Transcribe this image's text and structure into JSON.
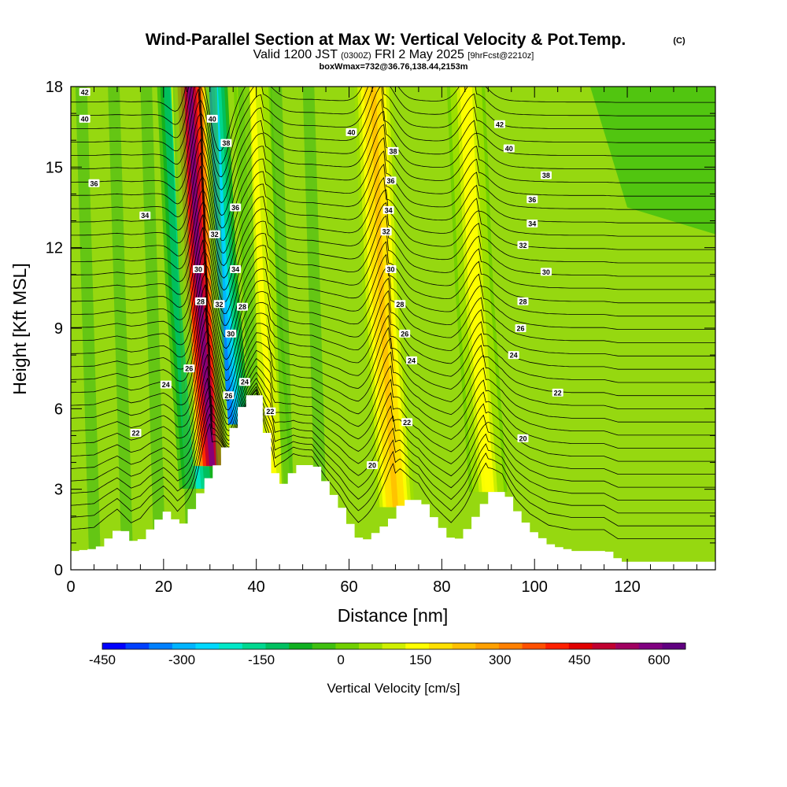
{
  "title": {
    "main": "Wind-Parallel Section at Max W: Vertical Velocity & Pot.Temp.",
    "copyright": "(C)",
    "valid_prefix": "Valid 1200 JST",
    "valid_utc": "(0300Z)",
    "valid_date": "FRI 2 May 2025",
    "forecast": "[9hrFcst@2210z]",
    "box_info": "boxWmax=732@36.76,138.44,2153m"
  },
  "chart_data": {
    "type": "heatmap",
    "xlabel": "Distance [nm]",
    "ylabel": "Height [Kft MSL]",
    "x_ticks": [
      "0",
      "20",
      "40",
      "60",
      "80",
      "100",
      "120"
    ],
    "x_tick_values": [
      0,
      20,
      40,
      60,
      80,
      100,
      120
    ],
    "y_ticks": [
      "0",
      "3",
      "6",
      "9",
      "12",
      "15",
      "18"
    ],
    "y_tick_values": [
      0,
      3,
      6,
      9,
      12,
      15,
      18
    ],
    "xlim": [
      0,
      139
    ],
    "ylim": [
      0,
      18
    ],
    "colorbar": {
      "label": "Vertical Velocity [cm/s]",
      "tick_labels": [
        "-450",
        "-300",
        "-150",
        "0",
        "150",
        "300",
        "450",
        "600"
      ],
      "tick_values": [
        -450,
        -300,
        -150,
        0,
        150,
        300,
        450,
        600
      ],
      "range": [
        -450,
        650
      ],
      "colors": [
        "#0000ff",
        "#0040ff",
        "#0080ff",
        "#00b4ff",
        "#00d8ff",
        "#00e8c8",
        "#00d890",
        "#00c060",
        "#10b020",
        "#40c010",
        "#70d000",
        "#a0e000",
        "#d0f000",
        "#ffff00",
        "#ffe000",
        "#ffc000",
        "#ffa000",
        "#ff8000",
        "#ff5000",
        "#ff2000",
        "#e00000",
        "#c00030",
        "#a00060",
        "#800080",
        "#600080"
      ]
    },
    "updrafts": [
      {
        "name": "updraft",
        "x": 30.5,
        "peak_cm_s": 600
      },
      {
        "name": "updraft",
        "x": 70,
        "peak_cm_s": 250
      },
      {
        "name": "updraft",
        "x": 90,
        "peak_cm_s": 150
      },
      {
        "name": "updraft",
        "x": 44,
        "peak_cm_s": 130
      }
    ],
    "downdrafts": [
      {
        "name": "downdraft",
        "x": 34.5,
        "peak_cm_s": -350
      },
      {
        "name": "downdraft",
        "x": 27.5,
        "peak_cm_s": -200
      }
    ],
    "terrain_profile": [
      [
        0,
        0.7
      ],
      [
        5,
        0.8
      ],
      [
        8,
        1.3
      ],
      [
        10,
        1.6
      ],
      [
        13,
        1.0
      ],
      [
        15,
        1.2
      ],
      [
        17,
        1.7
      ],
      [
        20,
        2.2
      ],
      [
        23,
        1.6
      ],
      [
        26,
        2.5
      ],
      [
        28,
        3.2
      ],
      [
        31,
        4.0
      ],
      [
        34,
        5.2
      ],
      [
        37,
        6.5
      ],
      [
        40,
        6.5
      ],
      [
        42,
        4.5
      ],
      [
        44,
        3.0
      ],
      [
        46,
        3.4
      ],
      [
        48,
        3.9
      ],
      [
        52,
        3.9
      ],
      [
        55,
        3.0
      ],
      [
        58,
        2.2
      ],
      [
        60,
        1.5
      ],
      [
        62,
        1.0
      ],
      [
        65,
        1.4
      ],
      [
        68,
        1.8
      ],
      [
        71,
        2.6
      ],
      [
        75,
        2.6
      ],
      [
        78,
        1.8
      ],
      [
        82,
        1.0
      ],
      [
        85,
        1.6
      ],
      [
        88,
        2.4
      ],
      [
        90,
        2.9
      ],
      [
        93,
        2.9
      ],
      [
        96,
        2.0
      ],
      [
        99,
        1.4
      ],
      [
        103,
        0.9
      ],
      [
        108,
        0.7
      ],
      [
        115,
        0.7
      ],
      [
        118,
        0.3
      ],
      [
        139,
        0.3
      ]
    ],
    "contour_levels": [
      20,
      22,
      24,
      26,
      28,
      30,
      32,
      34,
      36,
      38,
      40,
      42
    ],
    "contour_labels": [
      {
        "text": "42",
        "x": 3,
        "y": 17.8
      },
      {
        "text": "40",
        "x": 3,
        "y": 16.8
      },
      {
        "text": "36",
        "x": 5,
        "y": 14.4
      },
      {
        "text": "34",
        "x": 16,
        "y": 13.2
      },
      {
        "text": "22",
        "x": 14,
        "y": 5.1
      },
      {
        "text": "24",
        "x": 20.5,
        "y": 6.9
      },
      {
        "text": "26",
        "x": 25.5,
        "y": 7.5
      },
      {
        "text": "28",
        "x": 28,
        "y": 10.0
      },
      {
        "text": "30",
        "x": 27.5,
        "y": 11.2
      },
      {
        "text": "32",
        "x": 31,
        "y": 12.5
      },
      {
        "text": "32",
        "x": 32,
        "y": 9.9
      },
      {
        "text": "30",
        "x": 34.5,
        "y": 8.8
      },
      {
        "text": "26",
        "x": 34,
        "y": 6.5
      },
      {
        "text": "24",
        "x": 37.5,
        "y": 7.0
      },
      {
        "text": "34",
        "x": 35.5,
        "y": 11.2
      },
      {
        "text": "36",
        "x": 35.5,
        "y": 13.5
      },
      {
        "text": "38",
        "x": 33.5,
        "y": 15.9
      },
      {
        "text": "40",
        "x": 30.5,
        "y": 16.8
      },
      {
        "text": "28",
        "x": 37,
        "y": 9.8
      },
      {
        "text": "22",
        "x": 43,
        "y": 5.9
      },
      {
        "text": "40",
        "x": 60.5,
        "y": 16.3
      },
      {
        "text": "38",
        "x": 69.5,
        "y": 15.6
      },
      {
        "text": "36",
        "x": 69,
        "y": 14.5
      },
      {
        "text": "34",
        "x": 68.5,
        "y": 13.4
      },
      {
        "text": "32",
        "x": 68,
        "y": 12.6
      },
      {
        "text": "30",
        "x": 69,
        "y": 11.2
      },
      {
        "text": "28",
        "x": 71,
        "y": 9.9
      },
      {
        "text": "26",
        "x": 72,
        "y": 8.8
      },
      {
        "text": "24",
        "x": 73.5,
        "y": 7.8
      },
      {
        "text": "22",
        "x": 72.5,
        "y": 5.5
      },
      {
        "text": "20",
        "x": 65,
        "y": 3.9
      },
      {
        "text": "42",
        "x": 92.5,
        "y": 16.6
      },
      {
        "text": "40",
        "x": 94.5,
        "y": 15.7
      },
      {
        "text": "38",
        "x": 102.5,
        "y": 14.7
      },
      {
        "text": "36",
        "x": 99.5,
        "y": 13.8
      },
      {
        "text": "34",
        "x": 99.5,
        "y": 12.9
      },
      {
        "text": "32",
        "x": 97.5,
        "y": 12.1
      },
      {
        "text": "30",
        "x": 102.5,
        "y": 11.1
      },
      {
        "text": "28",
        "x": 97.5,
        "y": 10.0
      },
      {
        "text": "26",
        "x": 97,
        "y": 9.0
      },
      {
        "text": "24",
        "x": 95.5,
        "y": 8.0
      },
      {
        "text": "22",
        "x": 105,
        "y": 6.6
      },
      {
        "text": "20",
        "x": 97.5,
        "y": 4.9
      }
    ]
  }
}
